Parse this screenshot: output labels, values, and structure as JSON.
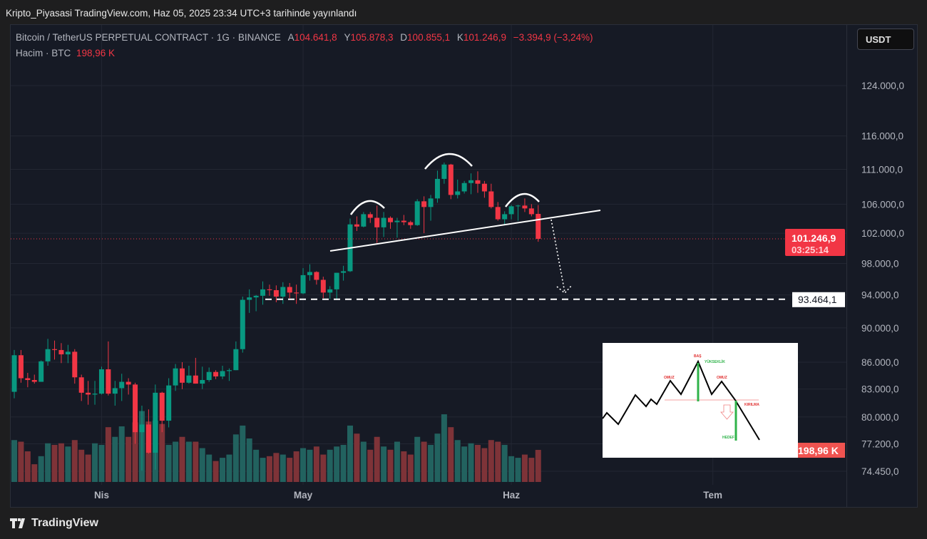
{
  "published": "Kripto_Piyasasi TradingView.com, Haz 05, 2025 23:34 UTC+3 tarihinde yayınlandı",
  "legend": {
    "symbol": "Bitcoin / TetherUS PERPETUAL CONTRACT · 1G · BINANCE",
    "open_label": "A",
    "open": "104.641,8",
    "high_label": "Y",
    "high": "105.878,3",
    "low_label": "D",
    "low": "100.855,1",
    "close_label": "K",
    "close": "101.246,9",
    "change": "−3.394,9 (−3,24%)",
    "volume_label": "Hacim · BTC",
    "volume": "198,96 K"
  },
  "currency_button": "USDT",
  "branding": "TradingView",
  "diagram_labels": {
    "head": "BAŞ",
    "height": "YÜKSEKLİK",
    "left_shoulder": "OMUZ",
    "right_shoulder": "OMUZ",
    "breakout": "KIRILMA",
    "target": "HEDEF"
  },
  "colors": {
    "up": "#089981",
    "down": "#f23645",
    "bg": "#161a25",
    "vol_up": "#22625f",
    "vol_down": "#7e3338"
  },
  "chart_data": {
    "type": "candlestick",
    "scale": "log",
    "ylim": [
      74450,
      124000
    ],
    "price_ticks": [
      "124.000,0",
      "116.000,0",
      "111.000,0",
      "106.000,0",
      "102.000,0",
      "98.000,0",
      "94.000,0",
      "90.000,0",
      "86.000,0",
      "83.000,0",
      "80.000,0",
      "77.200,0",
      "74.450,0"
    ],
    "price_tick_values": [
      124000,
      116000,
      111000,
      106000,
      102000,
      98000,
      94000,
      90000,
      86000,
      83000,
      80000,
      77200,
      74450
    ],
    "time_ticks": [
      {
        "label": "Nis",
        "day": 13
      },
      {
        "label": "May",
        "day": 43
      },
      {
        "label": "Haz",
        "day": 74
      },
      {
        "label": "Tem",
        "day": 104
      }
    ],
    "last_price_label": "101.246,9",
    "countdown": "03:25:14",
    "target_label": "93.464,1",
    "target_price": 93464.1,
    "volume_label": "198,96 K",
    "start_date": "2025-03-19",
    "ohlc": [
      [
        82700,
        87400,
        82000,
        86800
      ],
      [
        86800,
        87400,
        83700,
        84200
      ],
      [
        84200,
        84800,
        83200,
        84000
      ],
      [
        84000,
        84600,
        83600,
        83800
      ],
      [
        83800,
        86200,
        83800,
        86100
      ],
      [
        86100,
        88700,
        85600,
        87500
      ],
      [
        87500,
        88500,
        86300,
        87400
      ],
      [
        87400,
        88200,
        85900,
        86900
      ],
      [
        86900,
        88000,
        85900,
        87200
      ],
      [
        87200,
        87500,
        83600,
        84300
      ],
      [
        84300,
        84600,
        81700,
        82600
      ],
      [
        82600,
        83900,
        81300,
        82400
      ],
      [
        82400,
        83900,
        81300,
        82500
      ],
      [
        82500,
        85500,
        82400,
        85200
      ],
      [
        85200,
        88400,
        82300,
        82500
      ],
      [
        82500,
        83900,
        81200,
        83100
      ],
      [
        83100,
        84700,
        81700,
        83800
      ],
      [
        83800,
        84200,
        82400,
        83500
      ],
      [
        83500,
        83700,
        77200,
        78400
      ],
      [
        78400,
        81200,
        74500,
        79200
      ],
      [
        79200,
        80800,
        76200,
        76300
      ],
      [
        76300,
        83500,
        74600,
        82600
      ],
      [
        82600,
        82700,
        78400,
        79600
      ],
      [
        79600,
        84200,
        78900,
        83400
      ],
      [
        83400,
        85800,
        82800,
        85300
      ],
      [
        85300,
        86000,
        83000,
        83700
      ],
      [
        83700,
        85600,
        83600,
        84500
      ],
      [
        84500,
        86500,
        83600,
        83600
      ],
      [
        83600,
        85500,
        83000,
        84000
      ],
      [
        84000,
        85400,
        83800,
        84900
      ],
      [
        84900,
        85100,
        84100,
        84400
      ],
      [
        84400,
        85600,
        84100,
        85000
      ],
      [
        85000,
        85300,
        83900,
        85100
      ],
      [
        85100,
        88400,
        85100,
        87500
      ],
      [
        87500,
        93800,
        87100,
        93400
      ],
      [
        93400,
        94700,
        91800,
        93700
      ],
      [
        93700,
        94000,
        92000,
        93900
      ],
      [
        93900,
        95700,
        92800,
        94700
      ],
      [
        94700,
        95300,
        93900,
        94600
      ],
      [
        94600,
        95200,
        93100,
        93800
      ],
      [
        93800,
        95600,
        92900,
        95000
      ],
      [
        95000,
        95500,
        93600,
        94300
      ],
      [
        94300,
        95300,
        92900,
        94200
      ],
      [
        94200,
        97400,
        94100,
        96500
      ],
      [
        96500,
        97900,
        95800,
        96900
      ],
      [
        96900,
        97000,
        95300,
        95900
      ],
      [
        95900,
        96300,
        93600,
        94300
      ],
      [
        94300,
        95100,
        93500,
        94700
      ],
      [
        94700,
        96800,
        93400,
        96800
      ],
      [
        96800,
        97700,
        95800,
        97000
      ],
      [
        97000,
        104000,
        96900,
        103200
      ],
      [
        103200,
        104300,
        102300,
        102900
      ],
      [
        102900,
        104900,
        102800,
        104600
      ],
      [
        104600,
        104900,
        103400,
        104100
      ],
      [
        104100,
        105800,
        100700,
        102800
      ],
      [
        102800,
        104900,
        101500,
        104100
      ],
      [
        104100,
        104300,
        102600,
        103500
      ],
      [
        103500,
        104100,
        101400,
        103700
      ],
      [
        103700,
        104500,
        103100,
        103500
      ],
      [
        103500,
        103700,
        102600,
        103100
      ],
      [
        103100,
        106700,
        103000,
        106400
      ],
      [
        106400,
        107100,
        102000,
        105600
      ],
      [
        105600,
        107300,
        103700,
        106800
      ],
      [
        106800,
        110800,
        106200,
        109600
      ],
      [
        109600,
        112000,
        108900,
        111700
      ],
      [
        111700,
        111800,
        106700,
        107300
      ],
      [
        107300,
        109500,
        106800,
        107800
      ],
      [
        107800,
        109300,
        107500,
        109000
      ],
      [
        109000,
        110400,
        107400,
        109400
      ],
      [
        109400,
        110700,
        107600,
        108900
      ],
      [
        108900,
        109300,
        106900,
        107800
      ],
      [
        107800,
        108900,
        105400,
        105600
      ],
      [
        105600,
        106300,
        103700,
        103900
      ],
      [
        103900,
        105000,
        103200,
        104600
      ],
      [
        104600,
        105900,
        103900,
        105700
      ],
      [
        105700,
        105900,
        103700,
        105800
      ],
      [
        105800,
        106800,
        104900,
        105400
      ],
      [
        105400,
        106000,
        104300,
        104600
      ],
      [
        104641.8,
        105878.3,
        100855.1,
        101246.9
      ]
    ],
    "volume_k": [
      260,
      250,
      190,
      110,
      160,
      240,
      230,
      240,
      220,
      260,
      200,
      170,
      240,
      230,
      340,
      280,
      345,
      280,
      370,
      440,
      375,
      380,
      360,
      230,
      250,
      280,
      250,
      250,
      210,
      170,
      130,
      150,
      170,
      295,
      350,
      270,
      200,
      150,
      160,
      180,
      170,
      150,
      190,
      210,
      200,
      220,
      170,
      200,
      220,
      230,
      350,
      300,
      250,
      200,
      280,
      220,
      200,
      250,
      190,
      170,
      280,
      250,
      230,
      300,
      420,
      340,
      260,
      220,
      240,
      230,
      210,
      260,
      250,
      230,
      160,
      150,
      170,
      150,
      199
    ]
  }
}
